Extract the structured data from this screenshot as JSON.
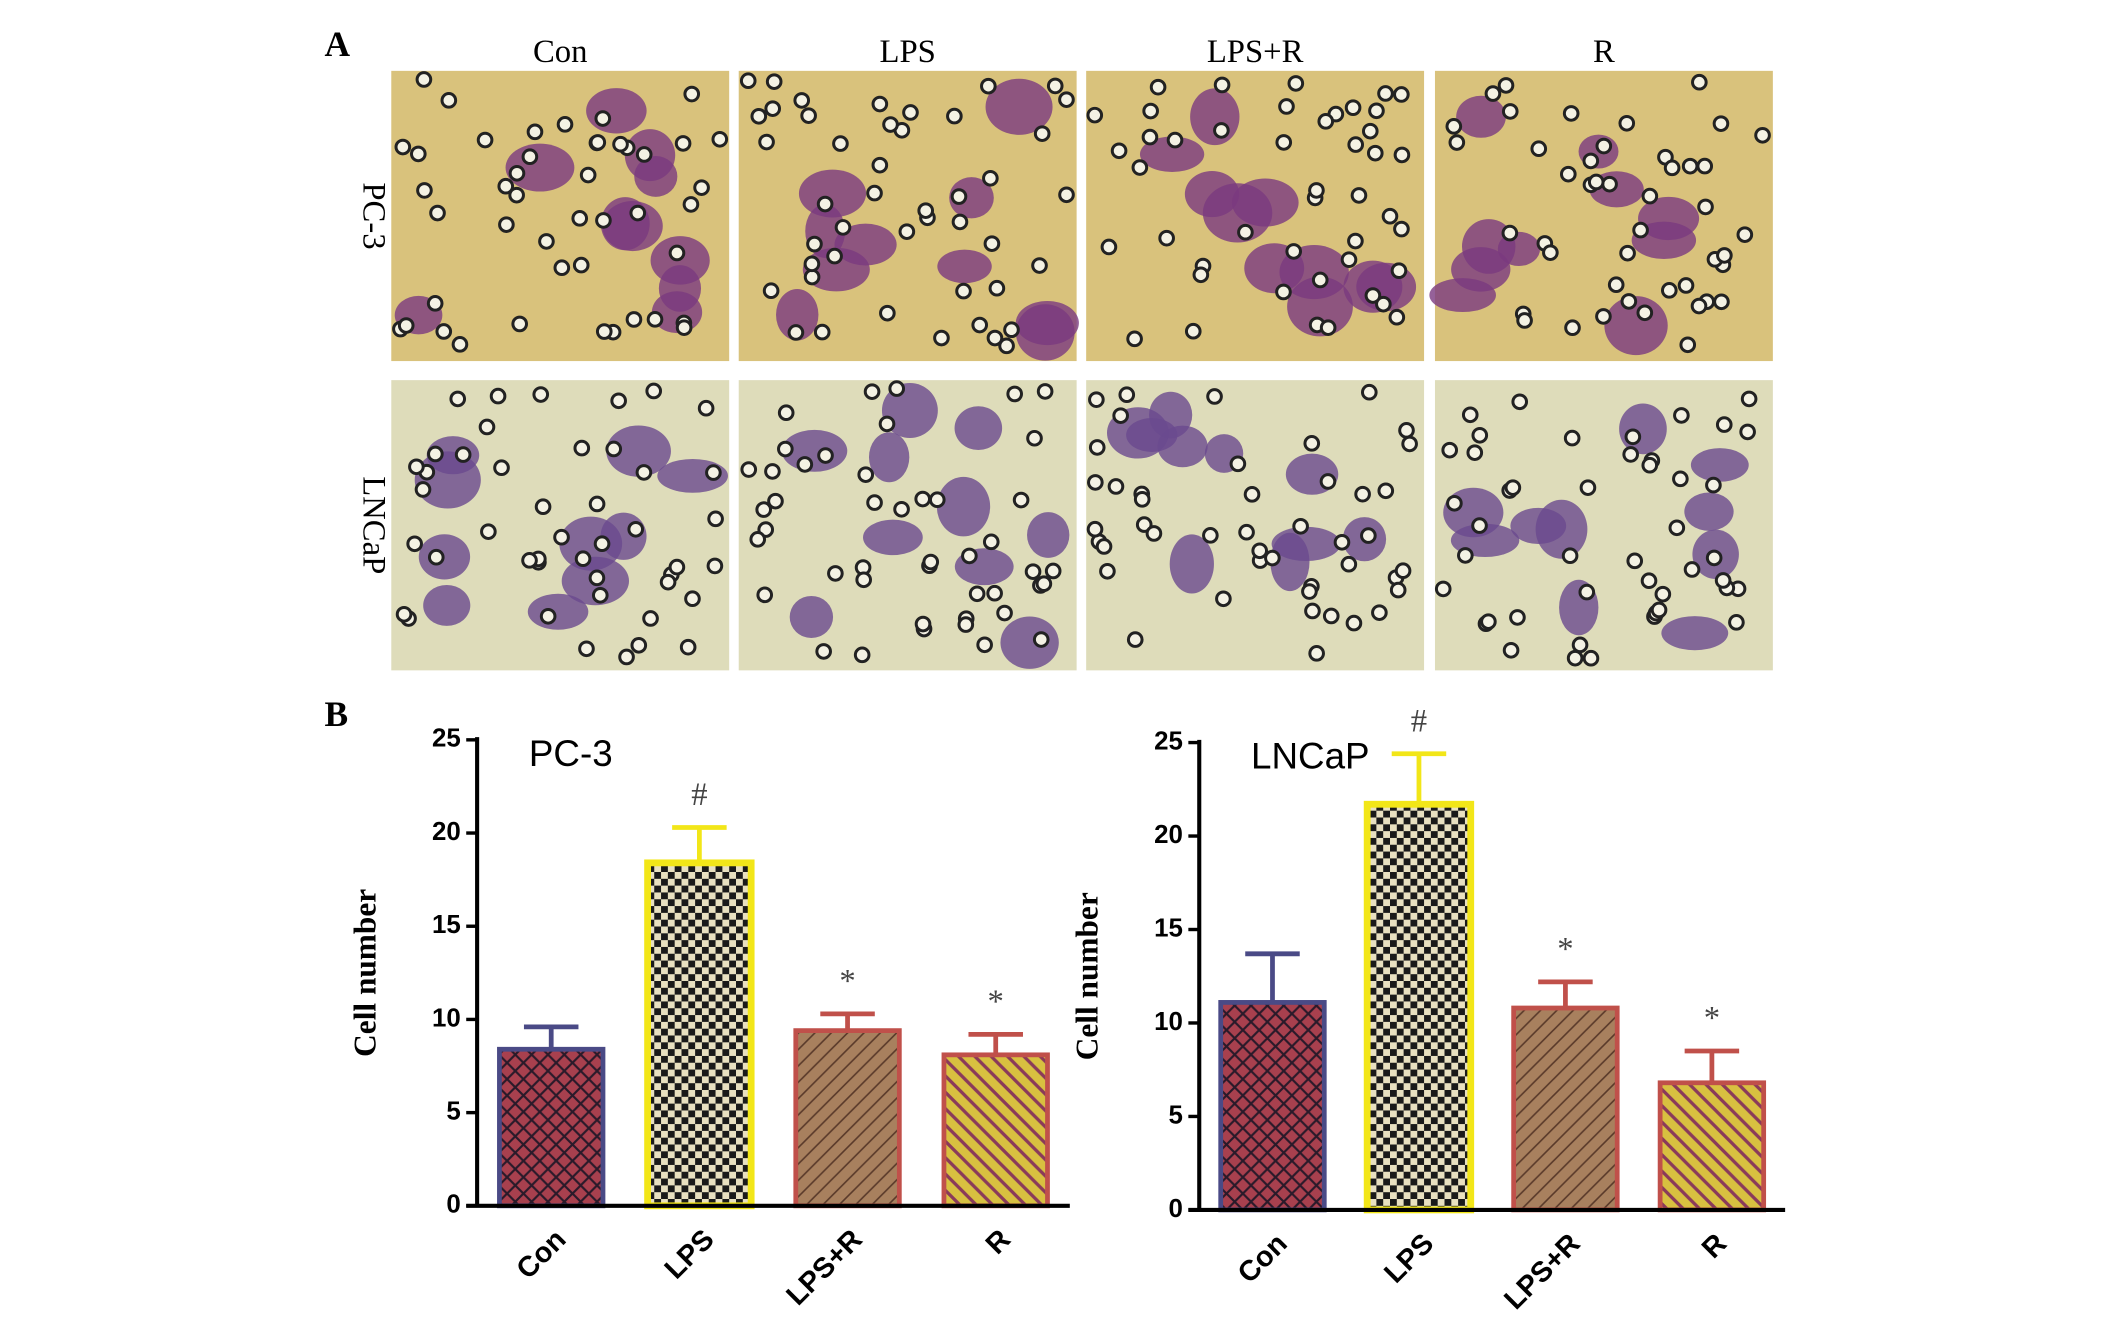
{
  "panel_a": {
    "label": "A",
    "columns": [
      "Con",
      "LPS",
      "LPS+R",
      "R"
    ],
    "rows": [
      "PC-3",
      "LNCaP"
    ]
  },
  "panel_b_label": "B",
  "chart_data": [
    {
      "type": "bar",
      "title": "PC-3",
      "y_label": "Cell number",
      "categories": [
        "Con",
        "LPS",
        "LPS+R",
        "R"
      ],
      "values": [
        8.4,
        18.4,
        9.4,
        8.1
      ],
      "errors": [
        1.2,
        1.9,
        0.9,
        1.1
      ],
      "markers": [
        null,
        "#",
        "*",
        "*"
      ],
      "colors": [
        "#a8404e",
        "#1a1a1a",
        "#a8805e",
        "#d8c040"
      ],
      "edge_colors": [
        "#4a4a86",
        "#f2e618",
        "#c0504a",
        "#c0504a"
      ],
      "ylim": [
        0,
        25
      ],
      "yticks": [
        0,
        5,
        10,
        15,
        20,
        25
      ]
    },
    {
      "type": "bar",
      "title": "LNCaP",
      "y_label": "Cell number",
      "categories": [
        "Con",
        "LPS",
        "LPS+R",
        "R"
      ],
      "values": [
        11.1,
        21.7,
        10.8,
        6.8
      ],
      "errors": [
        2.6,
        2.7,
        1.4,
        1.7
      ],
      "markers": [
        null,
        "#",
        "*",
        "*"
      ],
      "colors": [
        "#a8404e",
        "#1a1a1a",
        "#a8805e",
        "#d8c040"
      ],
      "edge_colors": [
        "#4a4a86",
        "#f2e618",
        "#c0504a",
        "#c0504a"
      ],
      "ylim": [
        0,
        25
      ],
      "yticks": [
        0,
        5,
        10,
        15,
        20,
        25
      ]
    }
  ]
}
